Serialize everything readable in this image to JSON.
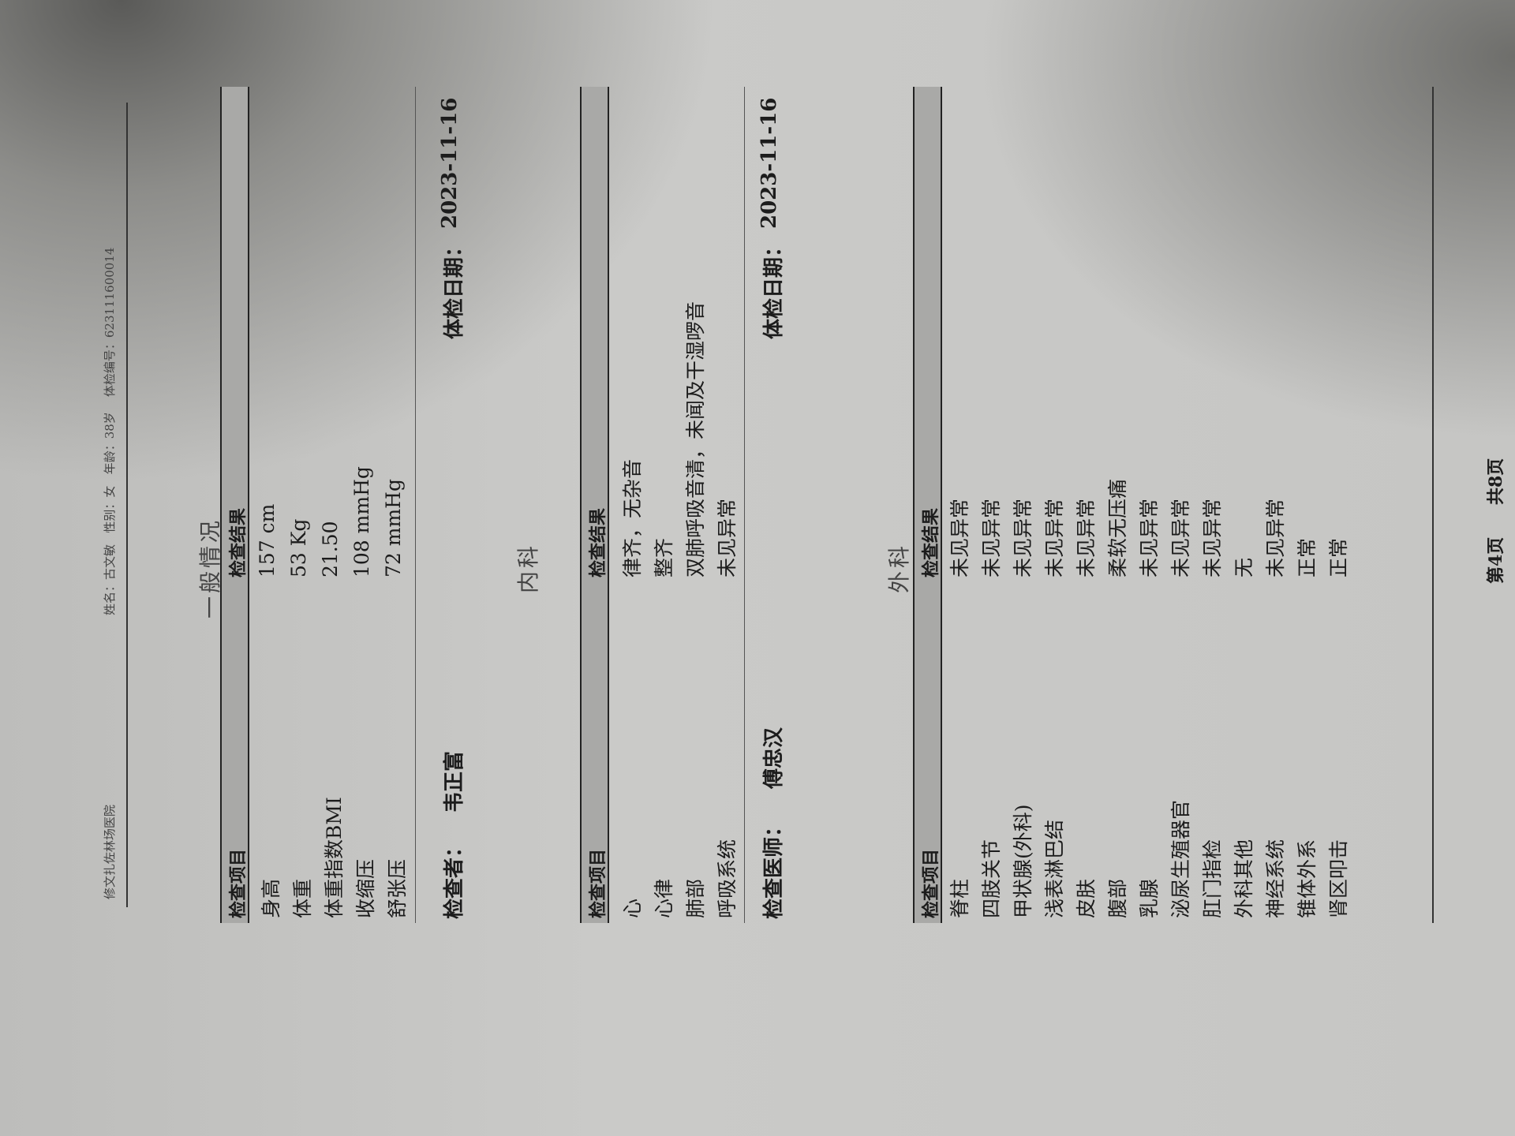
{
  "header": {
    "hospital": "修文扎佐林场医院",
    "name_label": "姓名：",
    "name": "古文敏",
    "sex_label": "性别：",
    "sex": "女",
    "age_label": "年龄：",
    "age": "38岁",
    "id_label": "体检编号：",
    "id": "623111600014"
  },
  "sections": [
    {
      "title": "一般情况",
      "col1": "检查项目",
      "col2": "检查结果",
      "rows": [
        [
          "身高",
          "157  cm"
        ],
        [
          "体重",
          "53  Kg"
        ],
        [
          "体重指数BMI",
          "21.50"
        ],
        [
          "收缩压",
          "108  mmHg"
        ],
        [
          "舒张压",
          "72  mmHg"
        ]
      ],
      "signer_label": "检查者：",
      "signer": "韦正富",
      "date_label": "体检日期：",
      "date": "2023-11-16"
    },
    {
      "title": "内科",
      "col1": "检查项目",
      "col2": "检查结果",
      "rows": [
        [
          "心",
          "律齐，无杂音"
        ],
        [
          "心律",
          "整齐"
        ],
        [
          "肺部",
          "双肺呼吸音清，未闻及干湿啰音"
        ],
        [
          "呼吸系统",
          "未见异常"
        ]
      ],
      "signer_label": "检查医师：",
      "signer": "傅忠汉",
      "date_label": "体检日期：",
      "date": "2023-11-16"
    },
    {
      "title": "外科",
      "col1": "检查项目",
      "col2": "检查结果",
      "rows": [
        [
          "脊柱",
          "未见异常"
        ],
        [
          "四肢关节",
          "未见异常"
        ],
        [
          "甲状腺(外科)",
          "未见异常"
        ],
        [
          "浅表淋巴结",
          "未见异常"
        ],
        [
          "皮肤",
          "未见异常"
        ],
        [
          "腹部",
          "柔软无压痛"
        ],
        [
          "乳腺",
          "未见异常"
        ],
        [
          "泌尿生殖器官",
          "未见异常"
        ],
        [
          "肛门指检",
          "未见异常"
        ],
        [
          "外科其他",
          "无"
        ],
        [
          "神经系统",
          "未见异常"
        ],
        [
          "锥体外系",
          "正常"
        ],
        [
          "肾区叩击",
          "正常"
        ]
      ]
    }
  ],
  "footer": {
    "page": "第4页",
    "total": "共8页"
  }
}
